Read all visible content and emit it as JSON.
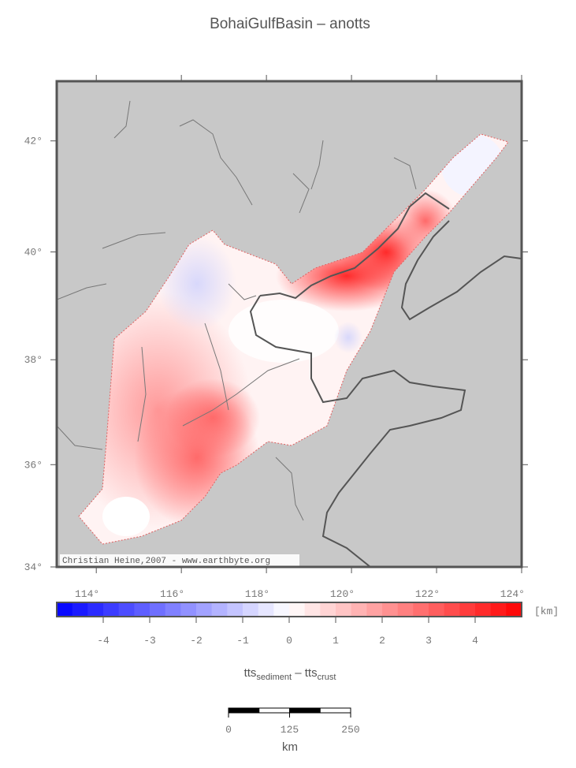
{
  "map": {
    "title": "BohaiGulfBasin – anotts",
    "credit": "Christian Heine,2007 - www.earthbyte.org",
    "lon_range": [
      113.07,
      124
    ],
    "lat_range": [
      34,
      43.05
    ],
    "lon_ticks": [
      {
        "value": 114,
        "label": "114°"
      },
      {
        "value": 116,
        "label": "116°"
      },
      {
        "value": 118,
        "label": "118°"
      },
      {
        "value": 120,
        "label": "120°"
      },
      {
        "value": 122,
        "label": "122°"
      },
      {
        "value": 124,
        "label": "124°"
      }
    ],
    "lat_ticks": [
      {
        "value": 34,
        "label": "34°"
      },
      {
        "value": 36,
        "label": "36°"
      },
      {
        "value": 38,
        "label": "38°"
      },
      {
        "value": 40,
        "label": "40°"
      },
      {
        "value": 42,
        "label": "42°"
      }
    ]
  },
  "colorbar": {
    "range": [
      -5,
      5
    ],
    "ticks": [
      -4,
      -3,
      -2,
      -1,
      0,
      1,
      2,
      3,
      4
    ],
    "unit": "[km]",
    "label_parts": [
      {
        "text": "tts",
        "sub": false
      },
      {
        "text": "sediment",
        "sub": true
      },
      {
        "text": " – tts",
        "sub": false
      },
      {
        "text": "crust",
        "sub": true
      }
    ],
    "low_color": "#0000ff",
    "mid_color": "#ffffff",
    "high_color": "#ff0000"
  },
  "scalebar": {
    "ticks": [
      0,
      125,
      250
    ],
    "unit": "km"
  }
}
